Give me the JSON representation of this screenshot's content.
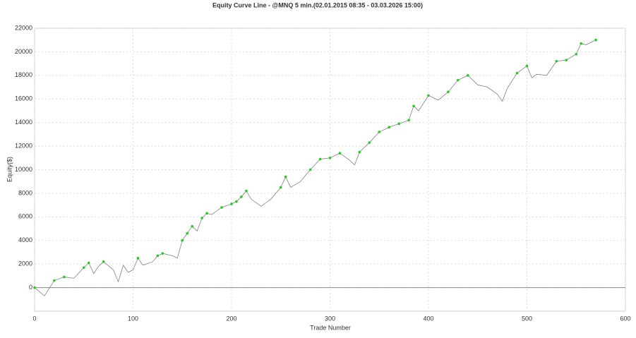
{
  "chart_data": {
    "type": "line",
    "title": "Equity Curve Line - @MNQ 5 min.(02.01.2015 08:35 - 03.03.2026 15:00)",
    "x_label": "Trade Number",
    "y_label": "Equity($)",
    "x": [
      0,
      10,
      20,
      30,
      40,
      50,
      55,
      60,
      65,
      70,
      80,
      85,
      90,
      95,
      100,
      105,
      110,
      120,
      125,
      130,
      140,
      145,
      150,
      155,
      160,
      165,
      170,
      175,
      180,
      190,
      200,
      205,
      210,
      215,
      220,
      230,
      240,
      250,
      255,
      260,
      270,
      280,
      290,
      300,
      310,
      320,
      325,
      330,
      340,
      350,
      360,
      370,
      380,
      385,
      390,
      400,
      410,
      420,
      430,
      440,
      450,
      460,
      470,
      475,
      480,
      490,
      500,
      505,
      510,
      520,
      530,
      540,
      550,
      555,
      560,
      570
    ],
    "series": [
      {
        "name": "Equity",
        "color": "#808080",
        "highlight_color": "#22cc22",
        "values": [
          0,
          -700,
          600,
          900,
          800,
          1700,
          2100,
          1200,
          1800,
          2200,
          1500,
          500,
          1900,
          1300,
          1500,
          2500,
          1900,
          2200,
          2700,
          2900,
          2700,
          2500,
          4000,
          4600,
          5200,
          4800,
          5900,
          6300,
          6200,
          6800,
          7100,
          7300,
          7700,
          8200,
          7500,
          6900,
          7500,
          8500,
          9400,
          8500,
          9000,
          10000,
          10900,
          11000,
          11400,
          10800,
          10400,
          11500,
          12300,
          13200,
          13600,
          13900,
          14200,
          15400,
          15000,
          16300,
          15900,
          16600,
          17600,
          18000,
          17200,
          17000,
          16400,
          15800,
          16900,
          18200,
          18800,
          17800,
          18100,
          18000,
          19200,
          19300,
          19800,
          20700,
          20600,
          21000
        ]
      }
    ],
    "xlim": [
      0,
      600
    ],
    "xticks": [
      0,
      100,
      200,
      300,
      400,
      500,
      600
    ],
    "ylim": [
      -2000,
      22000
    ],
    "yticks": [
      0,
      2000,
      4000,
      6000,
      8000,
      10000,
      12000,
      14000,
      16000,
      18000,
      20000,
      22000
    ],
    "grid": true
  }
}
